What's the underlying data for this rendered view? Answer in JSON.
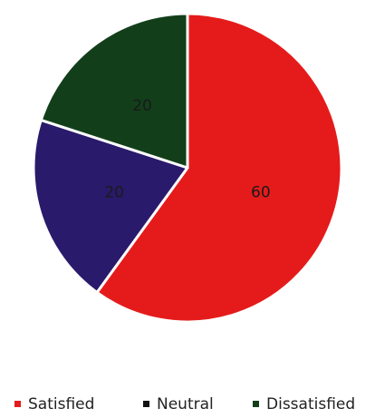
{
  "chart_data": {
    "type": "pie",
    "labels": [
      "Satisfied",
      "Neutral",
      "Dissatisfied"
    ],
    "values": [
      60,
      20,
      20
    ],
    "data_labels": [
      "60",
      "20",
      "20"
    ],
    "colors": [
      "#e51b1b",
      "#2a1a6b",
      "#123f1a"
    ],
    "legend": "bottom"
  }
}
